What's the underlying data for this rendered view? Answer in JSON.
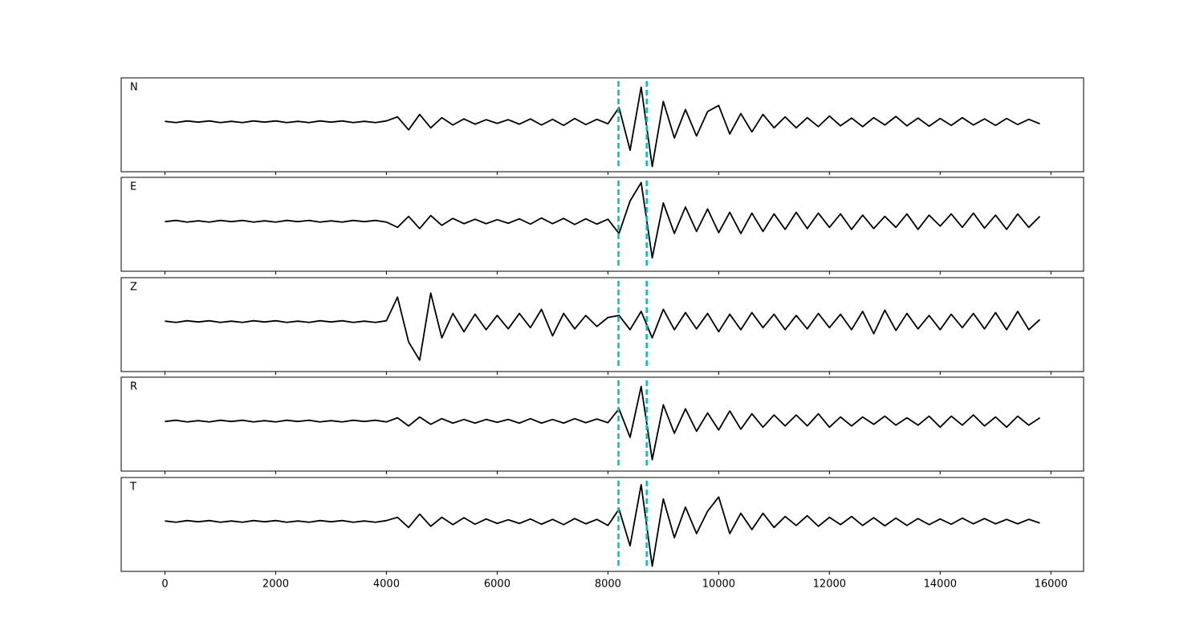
{
  "chart_data": {
    "type": "line",
    "x": [
      0,
      200,
      400,
      600,
      800,
      1000,
      1200,
      1400,
      1600,
      1800,
      2000,
      2200,
      2400,
      2600,
      2800,
      3000,
      3200,
      3400,
      3600,
      3800,
      4000,
      4200,
      4400,
      4600,
      4800,
      5000,
      5200,
      5400,
      5600,
      5800,
      6000,
      6200,
      6400,
      6600,
      6800,
      7000,
      7200,
      7400,
      7600,
      7800,
      8000,
      8200,
      8400,
      8600,
      8800,
      9000,
      9200,
      9400,
      9600,
      9800,
      10000,
      10200,
      10400,
      10600,
      10800,
      11000,
      11200,
      11400,
      11600,
      11800,
      12000,
      12200,
      12400,
      12600,
      12800,
      13000,
      13200,
      13400,
      13600,
      13800,
      14000,
      14200,
      14400,
      14600,
      14800,
      15000,
      15200,
      15400,
      15600,
      15800
    ],
    "xlim": [
      -790,
      16590
    ],
    "xticks": [
      0,
      2000,
      4000,
      6000,
      8000,
      10000,
      12000,
      14000,
      16000
    ],
    "ylim": [
      -1.15,
      1.0
    ],
    "series": [
      {
        "name": "N",
        "color": "#000000",
        "values": [
          0.01,
          -0.02,
          0.02,
          -0.01,
          0.02,
          -0.02,
          0.01,
          -0.02,
          0.02,
          -0.01,
          0.02,
          -0.02,
          0.01,
          -0.02,
          0.02,
          -0.01,
          0.02,
          -0.02,
          0.01,
          -0.02,
          0.02,
          0.12,
          -0.2,
          0.18,
          -0.15,
          0.1,
          -0.08,
          0.07,
          -0.06,
          0.05,
          -0.04,
          0.05,
          -0.06,
          0.07,
          -0.08,
          0.06,
          -0.09,
          0.08,
          -0.07,
          0.06,
          -0.05,
          0.35,
          -0.7,
          0.85,
          -1.1,
          0.5,
          -0.4,
          0.3,
          -0.35,
          0.25,
          0.4,
          -0.3,
          0.2,
          -0.25,
          0.18,
          -0.15,
          0.12,
          -0.15,
          0.1,
          -0.12,
          0.14,
          -0.1,
          0.09,
          -0.12,
          0.1,
          -0.08,
          0.13,
          -0.1,
          0.09,
          -0.11,
          0.08,
          -0.09,
          0.1,
          -0.08,
          0.07,
          -0.09,
          0.08,
          -0.07,
          0.06,
          -0.05
        ]
      },
      {
        "name": "E",
        "color": "#000000",
        "values": [
          -0.01,
          0.02,
          -0.02,
          0.01,
          -0.02,
          0.02,
          -0.01,
          0.02,
          -0.02,
          0.01,
          -0.02,
          0.02,
          -0.01,
          0.02,
          -0.02,
          0.01,
          -0.02,
          0.02,
          -0.01,
          0.02,
          -0.02,
          -0.15,
          0.12,
          -0.18,
          0.14,
          -0.1,
          0.07,
          -0.06,
          0.05,
          -0.06,
          0.04,
          -0.05,
          0.06,
          -0.07,
          0.08,
          -0.06,
          0.07,
          -0.08,
          0.06,
          -0.07,
          0.05,
          -0.3,
          0.5,
          0.95,
          -0.9,
          0.45,
          -0.3,
          0.35,
          -0.25,
          0.3,
          -0.28,
          0.22,
          -0.3,
          0.2,
          -0.25,
          0.18,
          -0.2,
          0.22,
          -0.18,
          0.2,
          -0.15,
          0.18,
          -0.2,
          0.15,
          -0.18,
          0.12,
          -0.15,
          0.18,
          -0.2,
          0.15,
          -0.12,
          0.18,
          -0.15,
          0.2,
          -0.17,
          0.15,
          -0.2,
          0.18,
          -0.15,
          0.12
        ]
      },
      {
        "name": "Z",
        "color": "#000000",
        "values": [
          0.01,
          -0.02,
          0.02,
          -0.01,
          0.02,
          -0.02,
          0.01,
          -0.02,
          0.02,
          -0.01,
          0.02,
          -0.02,
          0.01,
          -0.02,
          0.02,
          -0.01,
          0.02,
          -0.02,
          0.01,
          -0.02,
          0.02,
          0.6,
          -0.5,
          -0.95,
          0.7,
          -0.4,
          0.2,
          -0.25,
          0.18,
          -0.2,
          0.15,
          -0.18,
          0.2,
          -0.15,
          0.3,
          -0.35,
          0.2,
          -0.18,
          0.15,
          -0.12,
          0.1,
          0.15,
          -0.2,
          0.25,
          -0.4,
          0.3,
          -0.2,
          0.22,
          -0.18,
          0.2,
          -0.25,
          0.18,
          -0.2,
          0.22,
          -0.15,
          0.18,
          -0.2,
          0.15,
          -0.18,
          0.2,
          -0.15,
          0.18,
          -0.2,
          0.25,
          -0.3,
          0.28,
          -0.22,
          0.2,
          -0.18,
          0.15,
          -0.2,
          0.18,
          -0.15,
          0.2,
          -0.18,
          0.22,
          -0.2,
          0.25,
          -0.2,
          0.05
        ]
      },
      {
        "name": "R",
        "color": "#000000",
        "values": [
          -0.01,
          0.02,
          -0.02,
          0.01,
          -0.02,
          0.02,
          -0.01,
          0.02,
          -0.02,
          0.01,
          -0.02,
          0.02,
          -0.01,
          0.02,
          -0.02,
          0.01,
          -0.02,
          0.02,
          -0.01,
          0.02,
          -0.02,
          0.08,
          -0.12,
          0.1,
          -0.08,
          0.06,
          -0.05,
          0.04,
          -0.05,
          0.04,
          -0.03,
          0.04,
          -0.05,
          0.06,
          -0.05,
          0.04,
          -0.05,
          0.06,
          -0.04,
          0.05,
          -0.04,
          0.3,
          -0.4,
          0.85,
          -0.95,
          0.4,
          -0.3,
          0.3,
          -0.25,
          0.2,
          -0.22,
          0.25,
          -0.2,
          0.18,
          -0.15,
          0.15,
          -0.12,
          0.15,
          -0.12,
          0.18,
          -0.15,
          0.1,
          -0.12,
          0.1,
          -0.08,
          0.12,
          -0.1,
          0.08,
          -0.1,
          0.12,
          -0.15,
          0.12,
          -0.1,
          0.15,
          -0.12,
          0.1,
          -0.15,
          0.12,
          -0.1,
          0.08
        ]
      },
      {
        "name": "T",
        "color": "#000000",
        "values": [
          0.01,
          -0.02,
          0.02,
          -0.01,
          0.02,
          -0.02,
          0.01,
          -0.02,
          0.02,
          -0.01,
          0.02,
          -0.02,
          0.01,
          -0.02,
          0.02,
          -0.01,
          0.02,
          -0.02,
          0.01,
          -0.02,
          0.02,
          0.1,
          -0.15,
          0.18,
          -0.12,
          0.1,
          -0.08,
          0.09,
          -0.07,
          0.06,
          -0.05,
          0.04,
          -0.05,
          0.06,
          -0.07,
          0.05,
          -0.08,
          0.07,
          -0.06,
          0.05,
          -0.1,
          0.3,
          -0.6,
          0.9,
          -1.1,
          0.55,
          -0.4,
          0.35,
          -0.3,
          0.25,
          0.6,
          -0.3,
          0.2,
          -0.2,
          0.2,
          -0.15,
          0.12,
          -0.1,
          0.14,
          -0.12,
          0.1,
          -0.08,
          0.12,
          -0.1,
          0.09,
          -0.11,
          0.08,
          -0.1,
          0.07,
          -0.08,
          0.06,
          -0.07,
          0.08,
          -0.06,
          0.07,
          -0.06,
          0.05,
          -0.06,
          0.05,
          -0.04
        ]
      }
    ],
    "vlines": [
      {
        "value": 8190,
        "color": "#00bfbf"
      },
      {
        "value": 8700,
        "color": "#00bfbf"
      }
    ]
  }
}
